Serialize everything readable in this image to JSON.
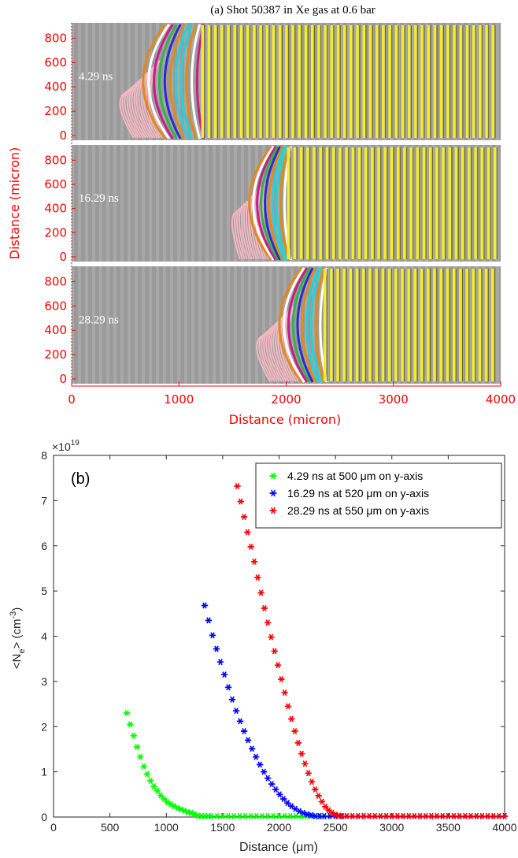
{
  "panel_a": {
    "title": "(a) Shot 50387 in Xe gas at 0.6 bar",
    "ylabel": "Distance (micron)",
    "xlabel": "Distance (micron)",
    "x_ticks": [
      0,
      1000,
      2000,
      3000,
      4000
    ],
    "y_ticks": [
      0,
      200,
      400,
      600,
      800
    ],
    "xlim": [
      0,
      4000
    ],
    "ylim": [
      0,
      900
    ],
    "label_color": "#ff0000",
    "frames": [
      {
        "label": "4.29 ns",
        "front_um": 520,
        "trans_um": 1220,
        "pink_from_um": 270
      },
      {
        "label": "16.29 ns",
        "front_um": 1510,
        "trans_um": 2020,
        "pink_from_um": 1490
      },
      {
        "label": "28.29 ns",
        "front_um": 1790,
        "trans_um": 2360,
        "pink_from_um": 1560
      }
    ]
  },
  "chart_data": {
    "type": "scatter",
    "panel_label": "(b)",
    "xlabel": "Distance (μm)",
    "ylabel": "<Ne> (cm-3)",
    "ylabel_parts": {
      "pre": "<N",
      "sub": "e",
      "mid": "> (cm",
      "sup": "-3",
      "post": ")"
    },
    "y_multiplier": "×10",
    "y_multiplier_exp": "19",
    "xlim": [
      0,
      4000
    ],
    "ylim": [
      0,
      8
    ],
    "x_ticks": [
      0,
      500,
      1000,
      1500,
      2000,
      2500,
      3000,
      3500,
      4000
    ],
    "y_ticks": [
      0,
      1,
      2,
      3,
      4,
      5,
      6,
      7,
      8
    ],
    "legend_position": "top-right",
    "marker": "*",
    "series": [
      {
        "name": "4.29 ns at 500 μm on y-axis",
        "color": "#00ff00",
        "x": [
          650,
          680,
          710,
          740,
          770,
          800,
          830,
          860,
          890,
          920,
          950,
          980,
          1010,
          1040,
          1070,
          1100,
          1130,
          1160,
          1190,
          1220,
          1250,
          1280,
          1310,
          1340,
          1370,
          1400,
          1450,
          1500,
          1550,
          1600,
          1650,
          1700,
          1750,
          1800,
          1850,
          1900,
          1950,
          2000,
          2050,
          2100,
          2150,
          2200,
          2250,
          2300,
          2350,
          2400,
          2450,
          2500
        ],
        "y": [
          2.3,
          2.05,
          1.8,
          1.55,
          1.33,
          1.12,
          0.95,
          0.8,
          0.68,
          0.58,
          0.48,
          0.4,
          0.33,
          0.28,
          0.24,
          0.2,
          0.17,
          0.14,
          0.11,
          0.09,
          0.06,
          0.03,
          0.02,
          0.02,
          0.02,
          0.02,
          0.02,
          0.02,
          0.02,
          0.02,
          0.02,
          0.02,
          0.02,
          0.02,
          0.02,
          0.02,
          0.02,
          0.02,
          0.02,
          0.02,
          0.02,
          0.02,
          0.02,
          0.02,
          0.02,
          0.02,
          0.02,
          0.02
        ]
      },
      {
        "name": "16.29 ns at 520 μm on y-axis",
        "color": "#0000ff",
        "x": [
          1340,
          1375,
          1410,
          1445,
          1480,
          1515,
          1550,
          1585,
          1620,
          1655,
          1690,
          1725,
          1760,
          1795,
          1830,
          1865,
          1900,
          1935,
          1970,
          2005,
          2040,
          2075,
          2110,
          2145,
          2180,
          2215,
          2250,
          2285,
          2320,
          2360,
          2400,
          2450,
          2500,
          2550,
          2600,
          2650,
          2700,
          2750,
          2800,
          2850,
          2900,
          2950,
          3000,
          3050,
          3100,
          3150,
          3200,
          3250,
          3300,
          3350,
          3400,
          3450,
          3500,
          3550,
          3600,
          3650,
          3700,
          3750,
          3800,
          3850,
          3900,
          3950,
          4000
        ],
        "y": [
          4.68,
          4.35,
          4.02,
          3.72,
          3.43,
          3.15,
          2.87,
          2.6,
          2.35,
          2.12,
          1.9,
          1.7,
          1.51,
          1.33,
          1.16,
          1.0,
          0.86,
          0.73,
          0.61,
          0.5,
          0.4,
          0.31,
          0.24,
          0.18,
          0.13,
          0.09,
          0.06,
          0.04,
          0.02,
          0.02,
          0.02,
          0.02,
          0.02,
          0.02,
          0.02,
          0.02,
          0.02,
          0.02,
          0.02,
          0.02,
          0.02,
          0.02,
          0.02,
          0.02,
          0.02,
          0.02,
          0.02,
          0.02,
          0.02,
          0.02,
          0.02,
          0.02,
          0.02,
          0.02,
          0.02,
          0.02,
          0.02,
          0.02,
          0.02,
          0.02,
          0.02,
          0.02,
          0.02
        ]
      },
      {
        "name": "28.29 ns at 550 μm on y-axis",
        "color": "#ff0000",
        "x": [
          1630,
          1660,
          1690,
          1720,
          1750,
          1780,
          1810,
          1840,
          1870,
          1900,
          1930,
          1960,
          1990,
          2020,
          2050,
          2080,
          2110,
          2140,
          2170,
          2200,
          2230,
          2260,
          2290,
          2320,
          2350,
          2380,
          2410,
          2440,
          2470,
          2500,
          2530,
          2560,
          2600,
          2650,
          2700,
          2750,
          2800,
          2850,
          2900,
          2950,
          3000,
          3050,
          3100,
          3150,
          3200,
          3250,
          3300,
          3350,
          3400,
          3450,
          3500,
          3550,
          3600,
          3650,
          3700,
          3750,
          3800,
          3850,
          3900,
          3950,
          4000
        ],
        "y": [
          7.32,
          6.98,
          6.64,
          6.3,
          5.98,
          5.65,
          5.3,
          4.96,
          4.62,
          4.3,
          3.98,
          3.67,
          3.36,
          3.05,
          2.75,
          2.45,
          2.17,
          1.9,
          1.64,
          1.4,
          1.18,
          0.97,
          0.78,
          0.61,
          0.47,
          0.34,
          0.23,
          0.15,
          0.09,
          0.05,
          0.03,
          0.02,
          0.02,
          0.02,
          0.02,
          0.02,
          0.02,
          0.02,
          0.02,
          0.02,
          0.02,
          0.02,
          0.02,
          0.02,
          0.02,
          0.02,
          0.02,
          0.02,
          0.02,
          0.02,
          0.02,
          0.02,
          0.02,
          0.02,
          0.02,
          0.02,
          0.02,
          0.02,
          0.02,
          0.02,
          0.02
        ]
      }
    ]
  }
}
